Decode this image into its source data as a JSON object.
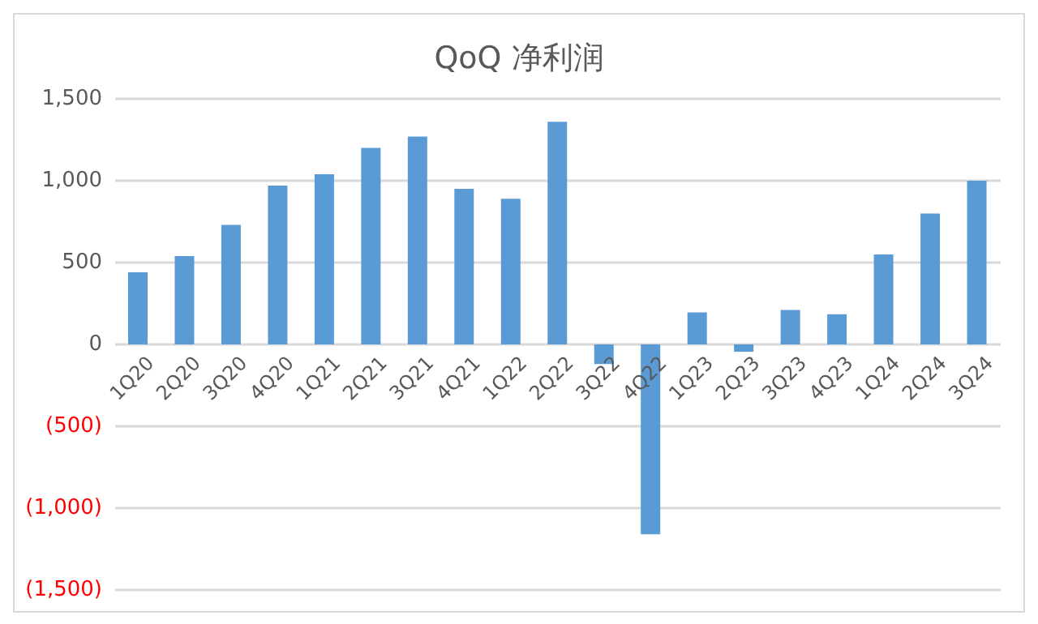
{
  "chart_data": {
    "type": "bar",
    "title": "QoQ 净利润",
    "categories": [
      "1Q20",
      "2Q20",
      "3Q20",
      "4Q20",
      "1Q21",
      "2Q21",
      "3Q21",
      "4Q21",
      "1Q22",
      "2Q22",
      "3Q22",
      "4Q22",
      "1Q23",
      "2Q23",
      "3Q23",
      "4Q23",
      "1Q24",
      "2Q24",
      "3Q24"
    ],
    "values": [
      440,
      540,
      730,
      970,
      1040,
      1200,
      1270,
      950,
      890,
      1360,
      -120,
      -1160,
      195,
      -45,
      210,
      185,
      550,
      800,
      1000
    ],
    "color": "#5b9bd5",
    "ylim": [
      -1500,
      1500
    ],
    "yticks": [
      {
        "value": -1500,
        "label": "(1,500)"
      },
      {
        "value": -1000,
        "label": "(1,000)"
      },
      {
        "value": -500,
        "label": "(500)"
      },
      {
        "value": 0,
        "label": "0"
      },
      {
        "value": 500,
        "label": "500"
      },
      {
        "value": 1000,
        "label": "1,000"
      },
      {
        "value": 1500,
        "label": "1,500"
      }
    ],
    "grid": "y"
  }
}
